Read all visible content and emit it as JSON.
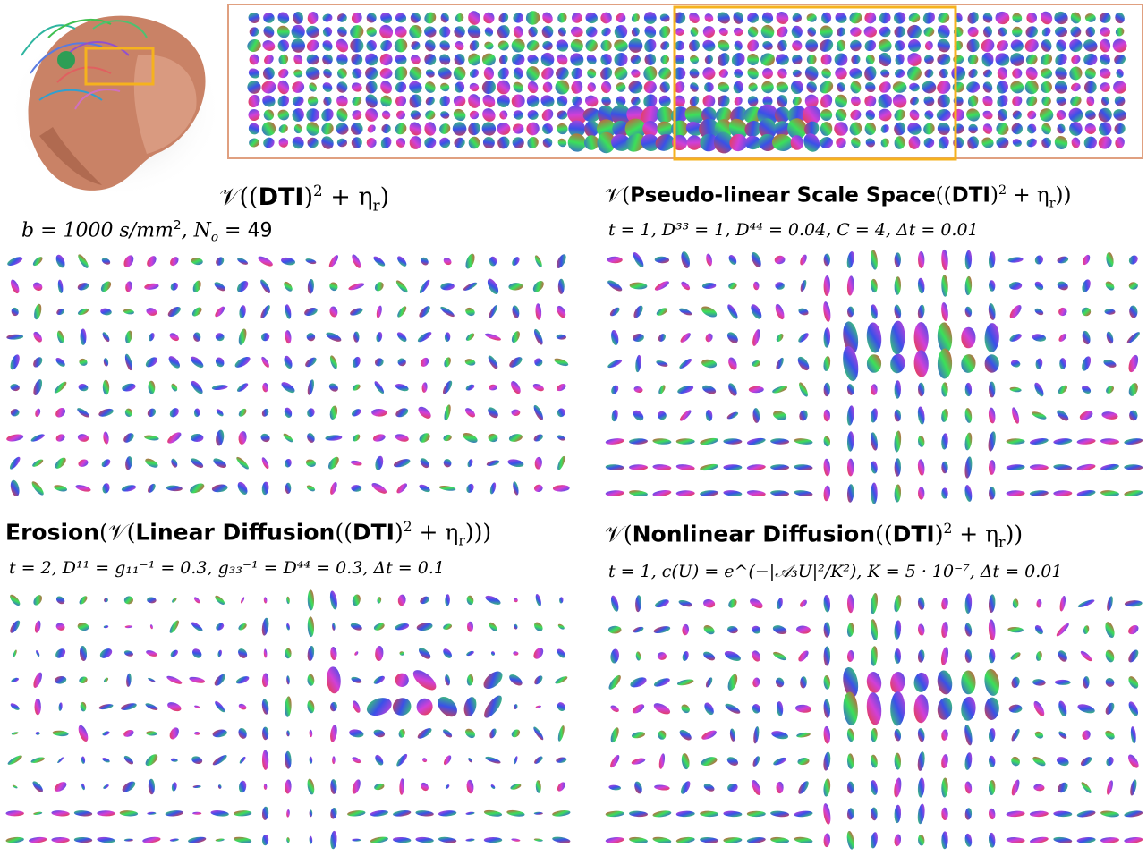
{
  "top": {
    "brain_alt": "brain fiber rendering",
    "strip_alt": "glyph field overview"
  },
  "panels": {
    "top_left": {
      "title_main": "𝒱((",
      "title_bold": "DTI",
      "title_tail": ")",
      "title_sup": "2",
      "title_end": " + η",
      "title_sub": "r",
      "title_close": ")",
      "param_b": "b = 1000 s/mm",
      "param_b_sup": "2",
      "param_n": ", N",
      "param_n_sub": "o",
      "param_n_val": " = 49"
    },
    "top_right": {
      "title_open": "𝒱(",
      "title_bold": "Pseudo-linear Scale Space",
      "title_mid": "((",
      "title_bold2": "DTI",
      "title_tail": ")",
      "title_sup": "2",
      "title_end": " + η",
      "title_sub": "r",
      "title_close": "))",
      "params": "t = 1, D³³ = 1, D⁴⁴ = 0.04, C = 4, Δt = 0.01"
    },
    "bottom_left": {
      "title_bold": "Erosion",
      "title_open": "(𝒱(",
      "title_bold2": "Linear Diffusion",
      "title_mid": "((",
      "title_bold3": "DTI",
      "title_tail": ")",
      "title_sup": "2",
      "title_end": " + η",
      "title_sub": "r",
      "title_close": ")))",
      "params": "t = 2, D¹¹ = g₁₁⁻¹ = 0.3, g₃₃⁻¹ = D⁴⁴ = 0.3, Δt = 0.1"
    },
    "bottom_right": {
      "title_open": "𝒱(",
      "title_bold": "Nonlinear Diffusion",
      "title_mid": "((",
      "title_bold2": "DTI",
      "title_tail": ")",
      "title_sup": "2",
      "title_end": " + η",
      "title_sub": "r",
      "title_close": "))",
      "params": "t = 1, c(U) = e^(−|𝒜₃U|²/K²), K = 5 · 10⁻⁷, Δt = 0.01"
    }
  },
  "colors": {
    "highlight_box": "#F5B21E",
    "strip_border": "#E0A080",
    "glyph_green": "#3BE05A",
    "glyph_blue": "#3A50E8",
    "glyph_red": "#E8403A",
    "glyph_magenta": "#D040D8"
  }
}
